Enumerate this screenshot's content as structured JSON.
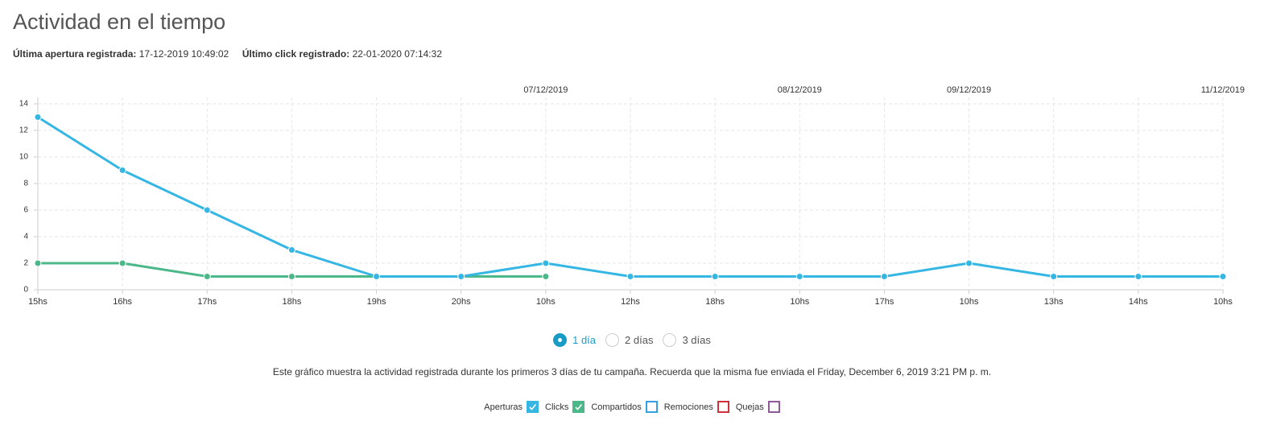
{
  "header": {
    "title": "Actividad en el tiempo",
    "last_open_label": "Última apertura registrada:",
    "last_open_value": "17-12-2019 10:49:02",
    "last_click_label": "Último click registrado:",
    "last_click_value": "22-01-2020 07:14:32"
  },
  "chart_data": {
    "type": "line",
    "categories": [
      "15hs",
      "16hs",
      "17hs",
      "18hs",
      "19hs",
      "20hs",
      "10hs",
      "12hs",
      "18hs",
      "10hs",
      "17hs",
      "10hs",
      "13hs",
      "14hs",
      "10hs"
    ],
    "date_labels": [
      null,
      null,
      null,
      null,
      null,
      null,
      "07/12/2019",
      null,
      null,
      "08/12/2019",
      null,
      "09/12/2019",
      null,
      null,
      "11/12/2019"
    ],
    "series": [
      {
        "name": "Aperturas",
        "color": "#35b6e3",
        "values": [
          13,
          9,
          6,
          3,
          1,
          1,
          2,
          1,
          1,
          1,
          1,
          2,
          1,
          1,
          1
        ]
      },
      {
        "name": "Clicks",
        "color": "#4cb88a",
        "values": [
          2,
          2,
          1,
          1,
          1,
          1,
          1,
          null,
          null,
          null,
          null,
          null,
          null,
          null,
          null
        ]
      }
    ],
    "ylim": [
      0,
      14
    ],
    "yticks": [
      0,
      2,
      4,
      6,
      8,
      10,
      12,
      14
    ],
    "grid": true
  },
  "range_options": {
    "options": [
      "1 día",
      "2 días",
      "3 días"
    ],
    "selected": 0
  },
  "note": "Este gráfico muestra la actividad registrada durante los primeros 3 días de tu campaña. Recuerda que la misma fue enviada el Friday, December 6, 2019 3:21 PM p. m.",
  "inactive_series": [
    {
      "name": "Compartidos",
      "color": "#35a0e3"
    },
    {
      "name": "Remociones",
      "color": "#d0313a"
    },
    {
      "name": "Quejas",
      "color": "#8e5a9a"
    }
  ]
}
